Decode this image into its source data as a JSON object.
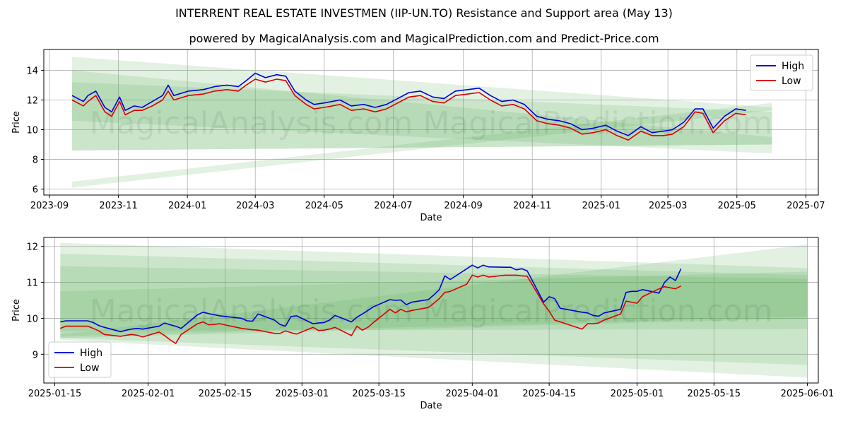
{
  "header": {
    "title": "INTERRENT REAL ESTATE INVESTMEN (IIP-UN.TO) Resistance and Support area (May 13)",
    "subtitle": "powered by MagicalAnalysis.com and MagicalPrediction.com and Predict-Price.com"
  },
  "watermark": "MagicalAnalysis.com    MagicalPrediction.com",
  "colors": {
    "high": "#0000dd",
    "low": "#dd0000",
    "band": "#5aaa5a",
    "axes": "#000000"
  },
  "chart_data": [
    {
      "type": "line",
      "xlabel": "Date",
      "ylabel": "Price",
      "ylim": [
        5.6,
        15.4
      ],
      "xlim": [
        "2023-08-27",
        "2025-07-12"
      ],
      "x_ticks": [
        "2023-09",
        "2023-11",
        "2024-01",
        "2024-03",
        "2024-05",
        "2024-07",
        "2024-09",
        "2024-11",
        "2025-01",
        "2025-03",
        "2025-05",
        "2025-07"
      ],
      "y_ticks": [
        6,
        8,
        10,
        12,
        14
      ],
      "legend": {
        "position": "top-right",
        "entries": [
          "High",
          "Low"
        ]
      },
      "grid": true,
      "series": [
        {
          "name": "High",
          "color": "#0000dd",
          "x": [
            "2023-09-21",
            "2023-10-01",
            "2023-10-05",
            "2023-10-12",
            "2023-10-20",
            "2023-10-26",
            "2023-11-02",
            "2023-11-07",
            "2023-11-15",
            "2023-11-22",
            "2023-12-01",
            "2023-12-10",
            "2023-12-15",
            "2023-12-20",
            "2024-01-02",
            "2024-01-15",
            "2024-01-25",
            "2024-02-05",
            "2024-02-15",
            "2024-02-22",
            "2024-03-01",
            "2024-03-10",
            "2024-03-20",
            "2024-03-28",
            "2024-04-05",
            "2024-04-15",
            "2024-04-22",
            "2024-05-01",
            "2024-05-15",
            "2024-05-25",
            "2024-06-05",
            "2024-06-15",
            "2024-06-25",
            "2024-07-05",
            "2024-07-15",
            "2024-07-25",
            "2024-08-05",
            "2024-08-15",
            "2024-08-25",
            "2024-09-05",
            "2024-09-15",
            "2024-09-25",
            "2024-10-05",
            "2024-10-15",
            "2024-10-25",
            "2024-11-05",
            "2024-11-15",
            "2024-11-25",
            "2024-12-05",
            "2024-12-15",
            "2024-12-25",
            "2025-01-05",
            "2025-01-15",
            "2025-01-25",
            "2025-02-05",
            "2025-02-15",
            "2025-02-25",
            "2025-03-05",
            "2025-03-15",
            "2025-03-25",
            "2025-04-01",
            "2025-04-10",
            "2025-04-20",
            "2025-04-30",
            "2025-05-09"
          ],
          "y": [
            12.3,
            11.9,
            12.3,
            12.6,
            11.5,
            11.2,
            12.2,
            11.3,
            11.6,
            11.5,
            11.9,
            12.3,
            13.0,
            12.3,
            12.6,
            12.7,
            12.9,
            13.0,
            12.9,
            13.3,
            13.8,
            13.5,
            13.7,
            13.6,
            12.6,
            12.0,
            11.7,
            11.8,
            12.0,
            11.6,
            11.7,
            11.5,
            11.7,
            12.1,
            12.5,
            12.6,
            12.2,
            12.1,
            12.6,
            12.7,
            12.8,
            12.3,
            11.9,
            12.0,
            11.7,
            10.9,
            10.7,
            10.6,
            10.4,
            10.0,
            10.1,
            10.3,
            9.9,
            9.6,
            10.2,
            9.8,
            9.9,
            10.0,
            10.5,
            11.4,
            11.4,
            10.1,
            10.9,
            11.4,
            11.3
          ]
        },
        {
          "name": "Low",
          "color": "#dd0000",
          "x": [
            "2023-09-21",
            "2023-10-01",
            "2023-10-05",
            "2023-10-12",
            "2023-10-20",
            "2023-10-26",
            "2023-11-02",
            "2023-11-07",
            "2023-11-15",
            "2023-11-22",
            "2023-12-01",
            "2023-12-10",
            "2023-12-15",
            "2023-12-20",
            "2024-01-02",
            "2024-01-15",
            "2024-01-25",
            "2024-02-05",
            "2024-02-15",
            "2024-02-22",
            "2024-03-01",
            "2024-03-10",
            "2024-03-20",
            "2024-03-28",
            "2024-04-05",
            "2024-04-15",
            "2024-04-22",
            "2024-05-01",
            "2024-05-15",
            "2024-05-25",
            "2024-06-05",
            "2024-06-15",
            "2024-06-25",
            "2024-07-05",
            "2024-07-15",
            "2024-07-25",
            "2024-08-05",
            "2024-08-15",
            "2024-08-25",
            "2024-09-05",
            "2024-09-15",
            "2024-09-25",
            "2024-10-05",
            "2024-10-15",
            "2024-10-25",
            "2024-11-05",
            "2024-11-15",
            "2024-11-25",
            "2024-12-05",
            "2024-12-15",
            "2024-12-25",
            "2025-01-05",
            "2025-01-15",
            "2025-01-25",
            "2025-02-05",
            "2025-02-15",
            "2025-02-25",
            "2025-03-05",
            "2025-03-15",
            "2025-03-25",
            "2025-04-01",
            "2025-04-10",
            "2025-04-20",
            "2025-04-30",
            "2025-05-09"
          ],
          "y": [
            12.0,
            11.6,
            11.9,
            12.3,
            11.2,
            10.9,
            11.9,
            11.0,
            11.3,
            11.3,
            11.6,
            12.0,
            12.6,
            12.0,
            12.3,
            12.4,
            12.6,
            12.7,
            12.6,
            13.0,
            13.4,
            13.2,
            13.4,
            13.3,
            12.3,
            11.7,
            11.4,
            11.5,
            11.7,
            11.3,
            11.4,
            11.2,
            11.4,
            11.8,
            12.2,
            12.3,
            11.9,
            11.8,
            12.3,
            12.4,
            12.5,
            12.0,
            11.6,
            11.7,
            11.4,
            10.6,
            10.4,
            10.3,
            10.1,
            9.7,
            9.8,
            10.0,
            9.6,
            9.3,
            9.9,
            9.6,
            9.6,
            9.7,
            10.2,
            11.2,
            11.1,
            9.8,
            10.6,
            11.1,
            11.0
          ]
        }
      ],
      "bands": [
        {
          "x": [
            "2023-09-21",
            "2025-06-01"
          ],
          "upper": [
            14.9,
            11.5
          ],
          "lower": [
            8.6,
            9.0
          ]
        },
        {
          "x": [
            "2023-09-21",
            "2025-06-01"
          ],
          "upper": [
            14.0,
            9.5
          ],
          "lower": [
            8.6,
            9.0
          ]
        },
        {
          "x": [
            "2023-09-21",
            "2025-06-01"
          ],
          "upper": [
            13.2,
            11.2
          ],
          "lower": [
            10.6,
            8.4
          ]
        },
        {
          "x": [
            "2023-09-21",
            "2025-06-01"
          ],
          "upper": [
            6.5,
            11.8
          ],
          "lower": [
            6.1,
            11.3
          ]
        }
      ]
    },
    {
      "type": "line",
      "xlabel": "Date",
      "ylabel": "Price",
      "ylim": [
        8.2,
        12.25
      ],
      "xlim": [
        "2025-01-13",
        "2025-06-03"
      ],
      "x_ticks": [
        "2025-01-15",
        "2025-02-01",
        "2025-02-15",
        "2025-03-01",
        "2025-03-15",
        "2025-04-01",
        "2025-04-15",
        "2025-05-01",
        "2025-05-15",
        "2025-06-01"
      ],
      "y_ticks": [
        9,
        10,
        11,
        12
      ],
      "legend": {
        "position": "bottom-left",
        "entries": [
          "High",
          "Low"
        ]
      },
      "grid": true,
      "series": [
        {
          "name": "High",
          "color": "#0000dd",
          "x": [
            "2025-01-16",
            "2025-01-17",
            "2025-01-21",
            "2025-01-22",
            "2025-01-23",
            "2025-01-24",
            "2025-01-27",
            "2025-01-28",
            "2025-01-29",
            "2025-01-30",
            "2025-01-31",
            "2025-02-03",
            "2025-02-04",
            "2025-02-05",
            "2025-02-06",
            "2025-02-07",
            "2025-02-10",
            "2025-02-11",
            "2025-02-12",
            "2025-02-13",
            "2025-02-14",
            "2025-02-18",
            "2025-02-19",
            "2025-02-20",
            "2025-02-21",
            "2025-02-24",
            "2025-02-25",
            "2025-02-26",
            "2025-02-27",
            "2025-02-28",
            "2025-03-03",
            "2025-03-04",
            "2025-03-05",
            "2025-03-06",
            "2025-03-07",
            "2025-03-10",
            "2025-03-11",
            "2025-03-12",
            "2025-03-13",
            "2025-03-14",
            "2025-03-17",
            "2025-03-18",
            "2025-03-19",
            "2025-03-20",
            "2025-03-21",
            "2025-03-24",
            "2025-03-25",
            "2025-03-26",
            "2025-03-27",
            "2025-03-28",
            "2025-03-31",
            "2025-04-01",
            "2025-04-02",
            "2025-04-03",
            "2025-04-04",
            "2025-04-07",
            "2025-04-08",
            "2025-04-09",
            "2025-04-10",
            "2025-04-11",
            "2025-04-14",
            "2025-04-15",
            "2025-04-16",
            "2025-04-17",
            "2025-04-21",
            "2025-04-22",
            "2025-04-23",
            "2025-04-24",
            "2025-04-25",
            "2025-04-28",
            "2025-04-29",
            "2025-04-30",
            "2025-05-01",
            "2025-05-02",
            "2025-05-05",
            "2025-05-06",
            "2025-05-07",
            "2025-05-08",
            "2025-05-09"
          ],
          "y": [
            9.9,
            9.93,
            9.93,
            9.88,
            9.8,
            9.75,
            9.63,
            9.67,
            9.7,
            9.72,
            9.7,
            9.78,
            9.87,
            9.82,
            9.78,
            9.72,
            10.1,
            10.17,
            10.13,
            10.1,
            10.07,
            10.0,
            9.93,
            9.92,
            10.12,
            9.95,
            9.83,
            9.78,
            10.05,
            10.07,
            9.85,
            9.87,
            9.88,
            9.95,
            10.08,
            9.9,
            10.03,
            10.12,
            10.22,
            10.32,
            10.52,
            10.5,
            10.51,
            10.38,
            10.45,
            10.52,
            10.65,
            10.8,
            11.18,
            11.08,
            11.38,
            11.48,
            11.4,
            11.48,
            11.43,
            11.42,
            11.42,
            11.35,
            11.38,
            11.32,
            10.45,
            10.6,
            10.55,
            10.28,
            10.17,
            10.15,
            10.08,
            10.06,
            10.15,
            10.25,
            10.72,
            10.75,
            10.75,
            10.8,
            10.7,
            11.0,
            11.15,
            11.05,
            11.38
          ],
          "x2": [
            "2025-05-02",
            "2025-05-05",
            "2025-05-06",
            "2025-05-07",
            "2025-05-08",
            "2025-05-09"
          ],
          "y2": [
            11.45,
            11.5,
            11.42,
            11.25,
            11.25,
            11.35
          ]
        },
        {
          "name": "Low",
          "color": "#dd0000",
          "y": [
            9.72,
            9.78,
            9.78,
            9.72,
            9.65,
            9.55,
            9.5,
            9.53,
            9.55,
            9.53,
            9.48,
            9.62,
            9.52,
            9.4,
            9.3,
            9.55,
            9.85,
            9.9,
            9.82,
            9.83,
            9.85,
            9.72,
            9.7,
            9.68,
            9.67,
            9.58,
            9.58,
            9.65,
            9.6,
            9.56,
            9.75,
            9.66,
            9.67,
            9.7,
            9.75,
            9.52,
            9.78,
            9.67,
            9.75,
            9.88,
            10.25,
            10.15,
            10.25,
            10.18,
            10.22,
            10.3,
            10.42,
            10.55,
            10.72,
            10.75,
            10.95,
            11.2,
            11.15,
            11.2,
            11.15,
            11.2,
            11.2,
            11.2,
            11.18,
            11.17,
            10.4,
            10.2,
            9.95,
            9.9,
            9.7,
            9.85,
            9.85,
            9.87,
            9.95,
            10.12,
            10.48,
            10.45,
            10.42,
            10.6,
            10.82,
            10.88,
            10.85,
            10.82,
            10.9
          ]
        }
      ],
      "bands": [
        {
          "x": [
            "2025-01-16",
            "2025-06-01"
          ],
          "upper": [
            12.1,
            11.4
          ],
          "lower": [
            9.4,
            8.35
          ]
        },
        {
          "x": [
            "2025-01-16",
            "2025-06-01"
          ],
          "upper": [
            11.8,
            11.2
          ],
          "lower": [
            9.45,
            8.7
          ]
        },
        {
          "x": [
            "2025-01-16",
            "2025-06-01"
          ],
          "upper": [
            11.45,
            11.1
          ],
          "lower": [
            9.65,
            9.7
          ]
        },
        {
          "x": [
            "2025-01-16",
            "2025-06-01"
          ],
          "upper": [
            10.75,
            11.3
          ],
          "lower": [
            9.5,
            10.05
          ]
        },
        {
          "x": [
            "2025-01-16",
            "2025-06-01"
          ],
          "upper": [
            9.55,
            12.05
          ],
          "lower": [
            9.45,
            10.0
          ]
        }
      ]
    }
  ]
}
